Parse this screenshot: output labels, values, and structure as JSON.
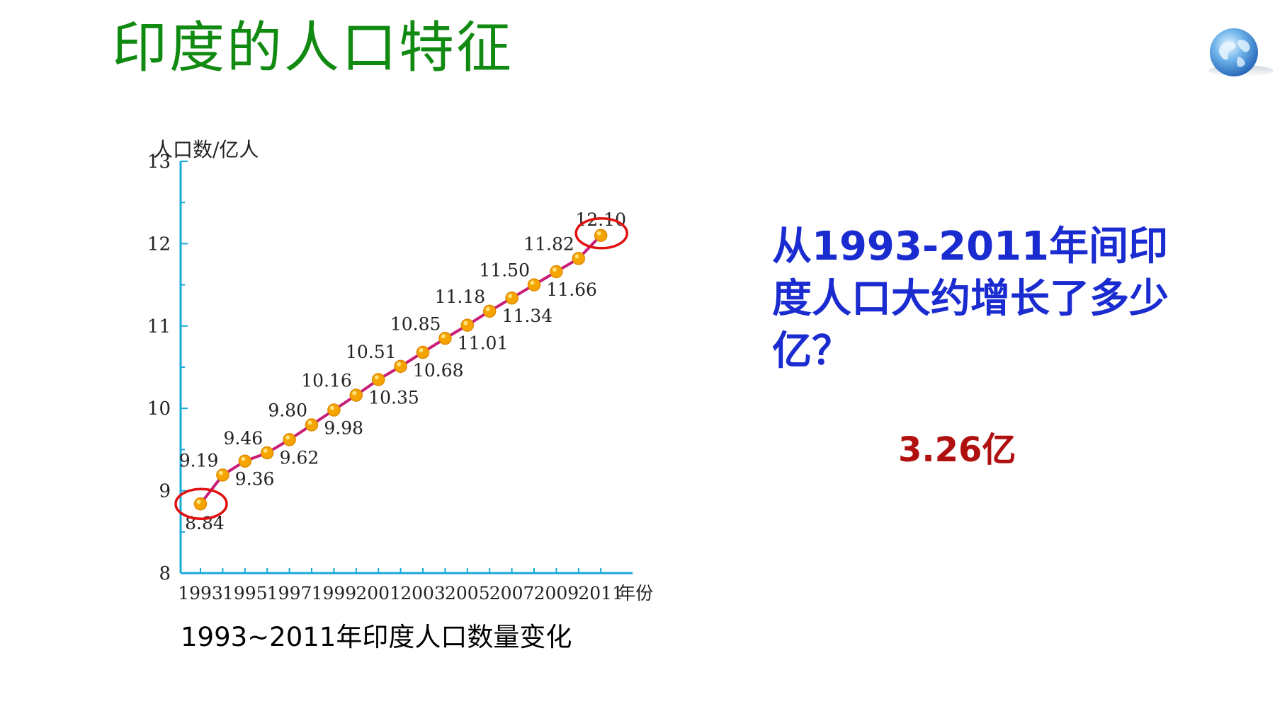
{
  "slide": {
    "title": "印度的人口特征",
    "caption": "1993~2011年印度人口数量变化",
    "question": "从1993-2011年间印度人口大约增长了多少亿？",
    "answer": "3.26亿",
    "colors": {
      "title": "#118a11",
      "question": "#1a2bd0",
      "answer": "#b01010",
      "axis": "#19a9d8",
      "line": "#c81e78",
      "point": "#f5a400",
      "highlight": "#e01010"
    },
    "icons": [
      "globe-icon"
    ]
  },
  "chart_data": {
    "type": "line",
    "ylabel": "人口数/亿人",
    "xlabel": "年份",
    "ylim": [
      8,
      13
    ],
    "yticks": [
      8,
      9,
      10,
      11,
      12,
      13
    ],
    "xticks": [
      "1993",
      "1995",
      "1997",
      "1999",
      "2001",
      "2003",
      "2005",
      "2007",
      "2009",
      "2011"
    ],
    "x_unit_suffix": "年份",
    "grid": false,
    "x": [
      1993,
      1994,
      1995,
      1996,
      1997,
      1998,
      1999,
      2000,
      2001,
      2002,
      2003,
      2004,
      2005,
      2006,
      2007,
      2008,
      2009,
      2010,
      2011
    ],
    "values": [
      8.84,
      9.19,
      9.36,
      9.46,
      9.62,
      9.8,
      9.98,
      10.16,
      10.35,
      10.51,
      10.68,
      10.85,
      11.01,
      11.18,
      11.34,
      11.5,
      11.66,
      11.82,
      12.1
    ],
    "data_labels": [
      "8.84",
      "9.19",
      "9.36",
      "9.46",
      "9.62",
      "9.80",
      "9.98",
      "10.16",
      "10.35",
      "10.51",
      "10.68",
      "10.85",
      "11.01",
      "11.18",
      "11.34",
      "11.50",
      "11.66",
      "11.82",
      "12.10"
    ],
    "highlighted": [
      1993,
      2011
    ]
  }
}
